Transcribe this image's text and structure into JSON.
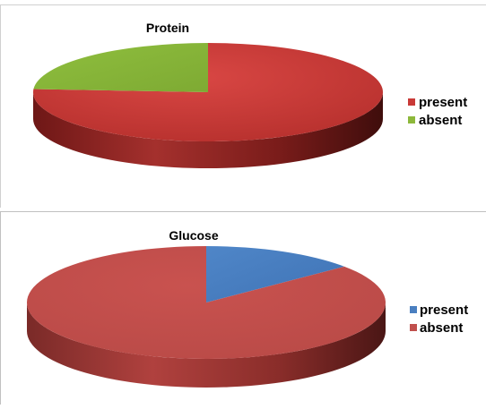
{
  "chart_data": [
    {
      "type": "pie",
      "style": "3d",
      "title": "Protein",
      "categories": [
        "present",
        "absent"
      ],
      "values": [
        76,
        24
      ],
      "colors": {
        "present": "#c93a37",
        "absent": "#8db83b"
      },
      "legend": {
        "placement": "right",
        "entries": [
          "present",
          "absent"
        ]
      }
    },
    {
      "type": "pie",
      "style": "3d",
      "title": "Glucose",
      "categories": [
        "present",
        "absent"
      ],
      "values": [
        14,
        86
      ],
      "colors": {
        "present": "#4a7fc0",
        "absent": "#c0504d"
      },
      "legend": {
        "placement": "right",
        "entries": [
          "present",
          "absent"
        ]
      }
    }
  ]
}
